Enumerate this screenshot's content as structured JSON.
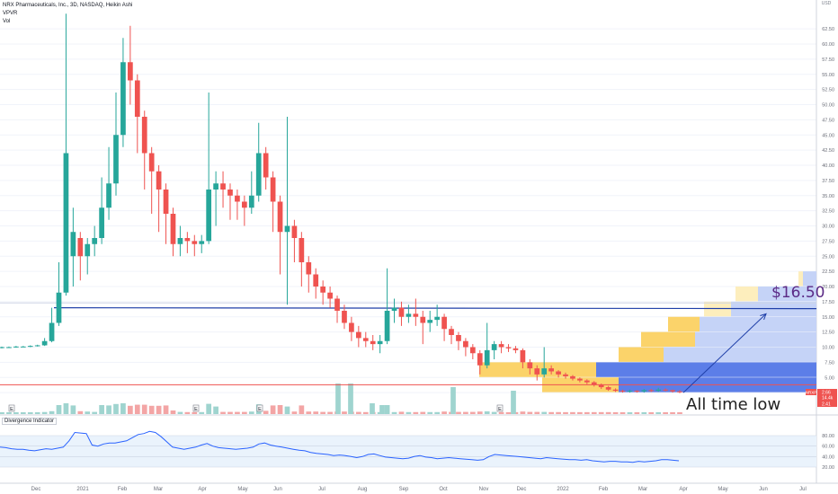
{
  "legend": {
    "title": "NRX Pharmaceuticals, Inc., 3D, NASDAQ, Heikin Ashi",
    "vpvr": "VPVR",
    "vol": "Vol"
  },
  "indicator_label": "Divergence Indicator",
  "annotations": {
    "price_target": "$16.50",
    "all_time_low": "All time low"
  },
  "top_right_label": "USD",
  "colors": {
    "up": "#26a69a",
    "down": "#ef5350",
    "vol_up": "#9fd4cf",
    "vol_down": "#f3a5a5",
    "hline_blue": "#1f3fa8",
    "hline_red": "#ef5350",
    "indicator_line": "#2962ff",
    "vp_blue": "#c5d3f7",
    "vp_blue_dark": "#5c7ee8",
    "vp_yellow": "#fbd36a",
    "vp_yellow_light": "#fdeebd",
    "arrow": "#1f3fa8"
  },
  "chart_data": {
    "type": "candlestick",
    "title": "NRX Pharmaceuticals, Inc., 3D, NASDAQ, Heikin Ashi",
    "y_axis_ticks": [
      "62.50",
      "60.00",
      "57.50",
      "55.00",
      "52.50",
      "50.00",
      "47.50",
      "45.00",
      "42.50",
      "40.00",
      "37.50",
      "35.00",
      "32.50",
      "30.00",
      "27.50",
      "25.00",
      "22.50",
      "20.00",
      "17.50",
      "15.00",
      "12.50",
      "10.00",
      "7.50",
      "5.00",
      "2.50"
    ],
    "x_axis_ticks": [
      "Dec",
      "2021",
      "Feb",
      "Mar",
      "Apr",
      "May",
      "Jun",
      "Jul",
      "Aug",
      "Sep",
      "Oct",
      "Nov",
      "Dec",
      "2022",
      "Feb",
      "Mar",
      "Apr",
      "May",
      "Jun",
      "Jul"
    ],
    "price_labels": [
      {
        "label": "NRXP",
        "value": "2.66"
      },
      {
        "label": "",
        "value": "14.4k"
      },
      {
        "label": "",
        "value": "2.41"
      }
    ],
    "ylim": [
      0,
      64
    ],
    "horizontal_lines": [
      16.5,
      3.8
    ],
    "candles": [
      {
        "d": "Dec",
        "o": 9.9,
        "c": 10.0,
        "h": 10.1,
        "l": 9.8
      },
      {
        "d": "Dec",
        "o": 10.0,
        "c": 10.0,
        "h": 10.1,
        "l": 9.9
      },
      {
        "d": "Dec",
        "o": 10.0,
        "c": 10.1,
        "h": 10.2,
        "l": 9.9
      },
      {
        "d": "Dec",
        "o": 10.1,
        "c": 10.1,
        "h": 10.2,
        "l": 10.0
      },
      {
        "d": "Dec",
        "o": 10.1,
        "c": 10.2,
        "h": 10.3,
        "l": 10.0
      },
      {
        "d": "Dec",
        "o": 10.2,
        "c": 10.3,
        "h": 10.4,
        "l": 10.1
      },
      {
        "d": "Dec",
        "o": 10.3,
        "c": 11.0,
        "h": 11.5,
        "l": 10.2
      },
      {
        "d": "Dec",
        "o": 11.0,
        "c": 14.0,
        "h": 16.5,
        "l": 10.8
      },
      {
        "d": "Dec",
        "o": 14.0,
        "c": 19.0,
        "h": 24.0,
        "l": 13.5
      },
      {
        "d": "Dec",
        "o": 19.0,
        "c": 42.0,
        "h": 65.0,
        "l": 18.5
      },
      {
        "d": "Jan",
        "o": 25.0,
        "c": 29.0,
        "h": 33.0,
        "l": 20.0
      },
      {
        "d": "Jan",
        "o": 28.0,
        "c": 25.0,
        "h": 29.0,
        "l": 21.0
      },
      {
        "d": "Jan",
        "o": 25.0,
        "c": 27.0,
        "h": 28.0,
        "l": 22.0
      },
      {
        "d": "Jan",
        "o": 27.0,
        "c": 28.0,
        "h": 30.0,
        "l": 25.0
      },
      {
        "d": "Jan",
        "o": 28.0,
        "c": 33.0,
        "h": 38.0,
        "l": 27.0
      },
      {
        "d": "Jan",
        "o": 33.0,
        "c": 37.0,
        "h": 43.0,
        "l": 31.0
      },
      {
        "d": "Jan",
        "o": 37.0,
        "c": 45.0,
        "h": 52.0,
        "l": 35.0
      },
      {
        "d": "Feb",
        "o": 45.0,
        "c": 57.0,
        "h": 61.0,
        "l": 43.0
      },
      {
        "d": "Feb",
        "o": 57.0,
        "c": 54.0,
        "h": 63.0,
        "l": 50.0
      },
      {
        "d": "Feb",
        "o": 54.0,
        "c": 48.0,
        "h": 55.0,
        "l": 42.0
      },
      {
        "d": "Feb",
        "o": 48.0,
        "c": 42.0,
        "h": 49.0,
        "l": 36.0
      },
      {
        "d": "Feb",
        "o": 42.0,
        "c": 39.0,
        "h": 43.0,
        "l": 32.0
      },
      {
        "d": "Feb",
        "o": 39.0,
        "c": 36.0,
        "h": 40.0,
        "l": 29.0
      },
      {
        "d": "Mar",
        "o": 36.0,
        "c": 32.0,
        "h": 37.0,
        "l": 27.0
      },
      {
        "d": "Mar",
        "o": 32.0,
        "c": 27.0,
        "h": 33.0,
        "l": 25.0
      },
      {
        "d": "Mar",
        "o": 27.0,
        "c": 28.0,
        "h": 30.0,
        "l": 25.0
      },
      {
        "d": "Mar",
        "o": 28.0,
        "c": 27.5,
        "h": 29.0,
        "l": 25.5
      },
      {
        "d": "Mar",
        "o": 27.5,
        "c": 27.0,
        "h": 28.5,
        "l": 25.0
      },
      {
        "d": "Mar",
        "o": 27.0,
        "c": 27.5,
        "h": 28.5,
        "l": 25.5
      },
      {
        "d": "Mar",
        "o": 27.5,
        "c": 36.0,
        "h": 52.0,
        "l": 27.0
      },
      {
        "d": "Apr",
        "o": 36.0,
        "c": 37.0,
        "h": 39.0,
        "l": 30.0
      },
      {
        "d": "Apr",
        "o": 37.0,
        "c": 36.0,
        "h": 39.0,
        "l": 33.0
      },
      {
        "d": "Apr",
        "o": 36.0,
        "c": 35.0,
        "h": 37.0,
        "l": 31.0
      },
      {
        "d": "Apr",
        "o": 35.0,
        "c": 34.0,
        "h": 36.0,
        "l": 31.0
      },
      {
        "d": "Apr",
        "o": 34.0,
        "c": 33.0,
        "h": 35.0,
        "l": 30.0
      },
      {
        "d": "Apr",
        "o": 33.0,
        "c": 35.0,
        "h": 39.0,
        "l": 32.0
      },
      {
        "d": "May",
        "o": 35.0,
        "c": 42.0,
        "h": 47.0,
        "l": 34.0
      },
      {
        "d": "May",
        "o": 42.0,
        "c": 38.0,
        "h": 43.0,
        "l": 36.0
      },
      {
        "d": "May",
        "o": 38.0,
        "c": 34.0,
        "h": 39.0,
        "l": 29.0
      },
      {
        "d": "May",
        "o": 34.0,
        "c": 29.0,
        "h": 35.0,
        "l": 22.0
      },
      {
        "d": "May",
        "o": 29.0,
        "c": 30.0,
        "h": 48.0,
        "l": 17.0
      },
      {
        "d": "Jun",
        "o": 30.0,
        "c": 28.0,
        "h": 31.0,
        "l": 24.0
      },
      {
        "d": "Jun",
        "o": 28.0,
        "c": 24.0,
        "h": 29.0,
        "l": 20.0
      },
      {
        "d": "Jun",
        "o": 24.0,
        "c": 22.0,
        "h": 25.0,
        "l": 19.0
      },
      {
        "d": "Jun",
        "o": 22.0,
        "c": 20.0,
        "h": 23.0,
        "l": 18.0
      },
      {
        "d": "Jun",
        "o": 20.0,
        "c": 19.0,
        "h": 21.0,
        "l": 17.0
      },
      {
        "d": "Jun",
        "o": 19.0,
        "c": 18.0,
        "h": 20.0,
        "l": 16.5
      },
      {
        "d": "Jul",
        "o": 18.0,
        "c": 16.0,
        "h": 18.5,
        "l": 14.0
      },
      {
        "d": "Jul",
        "o": 16.0,
        "c": 14.0,
        "h": 17.0,
        "l": 13.0
      },
      {
        "d": "Jul",
        "o": 14.0,
        "c": 12.5,
        "h": 15.0,
        "l": 11.0
      },
      {
        "d": "Jul",
        "o": 12.5,
        "c": 11.5,
        "h": 13.5,
        "l": 10.0
      },
      {
        "d": "Jul",
        "o": 11.5,
        "c": 11.0,
        "h": 12.5,
        "l": 10.0
      },
      {
        "d": "Jul",
        "o": 11.0,
        "c": 10.5,
        "h": 12.0,
        "l": 9.5
      },
      {
        "d": "Jul",
        "o": 10.5,
        "c": 11.0,
        "h": 12.0,
        "l": 9.0
      },
      {
        "d": "Jul",
        "o": 11.0,
        "c": 16.0,
        "h": 23.0,
        "l": 10.5
      },
      {
        "d": "Aug",
        "o": 16.0,
        "c": 16.5,
        "h": 18.0,
        "l": 14.0
      },
      {
        "d": "Aug",
        "o": 16.5,
        "c": 15.0,
        "h": 17.5,
        "l": 13.5
      },
      {
        "d": "Aug",
        "o": 15.0,
        "c": 15.5,
        "h": 17.0,
        "l": 14.0
      },
      {
        "d": "Aug",
        "o": 15.5,
        "c": 15.0,
        "h": 18.0,
        "l": 13.5
      },
      {
        "d": "Aug",
        "o": 15.0,
        "c": 14.0,
        "h": 16.0,
        "l": 10.5
      },
      {
        "d": "Aug",
        "o": 14.0,
        "c": 14.5,
        "h": 16.0,
        "l": 12.5
      },
      {
        "d": "Aug",
        "o": 14.5,
        "c": 15.0,
        "h": 17.0,
        "l": 13.5
      },
      {
        "d": "Sep",
        "o": 15.0,
        "c": 13.0,
        "h": 15.5,
        "l": 11.0
      },
      {
        "d": "Sep",
        "o": 13.0,
        "c": 12.0,
        "h": 13.5,
        "l": 10.5
      },
      {
        "d": "Sep",
        "o": 12.0,
        "c": 11.0,
        "h": 12.5,
        "l": 9.5
      },
      {
        "d": "Sep",
        "o": 11.0,
        "c": 10.0,
        "h": 11.5,
        "l": 8.5
      },
      {
        "d": "Sep",
        "o": 10.0,
        "c": 9.0,
        "h": 10.5,
        "l": 8.0
      },
      {
        "d": "Oct",
        "o": 9.0,
        "c": 7.0,
        "h": 9.5,
        "l": 5.5
      },
      {
        "d": "Oct",
        "o": 7.0,
        "c": 9.5,
        "h": 14.0,
        "l": 6.5
      },
      {
        "d": "Oct",
        "o": 9.5,
        "c": 10.5,
        "h": 11.0,
        "l": 8.0
      },
      {
        "d": "Oct",
        "o": 10.5,
        "c": 10.0,
        "h": 11.0,
        "l": 9.0
      },
      {
        "d": "Oct",
        "o": 10.0,
        "c": 9.8,
        "h": 10.5,
        "l": 9.2
      },
      {
        "d": "Oct",
        "o": 9.8,
        "c": 9.5,
        "h": 10.2,
        "l": 9.0
      },
      {
        "d": "Nov",
        "o": 9.5,
        "c": 7.5,
        "h": 9.8,
        "l": 6.5
      },
      {
        "d": "Nov",
        "o": 7.5,
        "c": 6.5,
        "h": 8.0,
        "l": 5.5
      },
      {
        "d": "Nov",
        "o": 6.5,
        "c": 5.5,
        "h": 7.0,
        "l": 4.5
      },
      {
        "d": "Nov",
        "o": 5.5,
        "c": 6.5,
        "h": 10.0,
        "l": 5.0
      },
      {
        "d": "Dec",
        "o": 6.5,
        "c": 6.0,
        "h": 7.0,
        "l": 5.5
      },
      {
        "d": "Dec",
        "o": 6.0,
        "c": 5.5,
        "h": 6.2,
        "l": 5.0
      },
      {
        "d": "Dec",
        "o": 5.5,
        "c": 5.2,
        "h": 5.8,
        "l": 4.8
      },
      {
        "d": "Dec",
        "o": 5.2,
        "c": 4.8,
        "h": 5.4,
        "l": 4.5
      },
      {
        "d": "Dec",
        "o": 4.8,
        "c": 4.5,
        "h": 5.0,
        "l": 4.2
      },
      {
        "d": "2022",
        "o": 4.5,
        "c": 4.2,
        "h": 4.7,
        "l": 3.9
      },
      {
        "d": "2022",
        "o": 4.2,
        "c": 3.8,
        "h": 4.4,
        "l": 3.5
      },
      {
        "d": "2022",
        "o": 3.8,
        "c": 3.4,
        "h": 4.0,
        "l": 3.1
      },
      {
        "d": "2022",
        "o": 3.4,
        "c": 3.0,
        "h": 3.6,
        "l": 2.8
      },
      {
        "d": "Feb",
        "o": 3.0,
        "c": 2.8,
        "h": 3.2,
        "l": 2.6
      },
      {
        "d": "Feb",
        "o": 2.8,
        "c": 2.7,
        "h": 3.0,
        "l": 2.5
      },
      {
        "d": "Feb",
        "o": 2.7,
        "c": 2.8,
        "h": 3.0,
        "l": 2.5
      },
      {
        "d": "Feb",
        "o": 2.8,
        "c": 2.7,
        "h": 2.9,
        "l": 2.5
      },
      {
        "d": "Mar",
        "o": 2.7,
        "c": 2.9,
        "h": 3.1,
        "l": 2.5
      },
      {
        "d": "Mar",
        "o": 2.9,
        "c": 2.8,
        "h": 3.1,
        "l": 2.6
      },
      {
        "d": "Mar",
        "o": 2.8,
        "c": 3.0,
        "h": 3.3,
        "l": 2.6
      },
      {
        "d": "Mar",
        "o": 3.0,
        "c": 2.9,
        "h": 3.2,
        "l": 2.7
      },
      {
        "d": "Mar",
        "o": 2.9,
        "c": 2.7,
        "h": 3.0,
        "l": 2.5
      },
      {
        "d": "Mar",
        "o": 2.7,
        "c": 2.66,
        "h": 2.9,
        "l": 2.41
      }
    ],
    "volume_spikes": {
      "Jul": 25,
      "Aug": 8,
      "Oct": 22,
      "Nov": 20,
      "Dec": 5
    },
    "event_markers": [
      {
        "label": "E",
        "month": "Dec"
      },
      {
        "label": "E",
        "month": "Mar"
      },
      {
        "label": "E",
        "month": "May"
      },
      {
        "label": "E",
        "month": "Nov"
      }
    ],
    "volume_profile": [
      {
        "price": 20.0,
        "up": 15,
        "down": 5
      },
      {
        "price": 17.5,
        "up": 65,
        "down": 25
      },
      {
        "price": 15.0,
        "up": 95,
        "down": 30
      },
      {
        "price": 12.5,
        "up": 130,
        "down": 35
      },
      {
        "price": 10.0,
        "up": 135,
        "down": 60
      },
      {
        "price": 7.5,
        "up": 170,
        "down": 50
      },
      {
        "price": 5.0,
        "up": 245,
        "down": 130
      },
      {
        "price": 2.5,
        "up": 220,
        "down": 85
      }
    ],
    "indicator": {
      "name": "Divergence Indicator",
      "y_ticks": [
        "80.00",
        "60.00",
        "40.00",
        "20.00"
      ],
      "ylim": [
        20,
        92
      ],
      "values": [
        58,
        57,
        55,
        54,
        54,
        52,
        51,
        53,
        55,
        54,
        56,
        58,
        70,
        86,
        85,
        84,
        62,
        60,
        64,
        66,
        66,
        68,
        70,
        76,
        82,
        84,
        88,
        86,
        78,
        68,
        58,
        56,
        54,
        56,
        58,
        62,
        65,
        60,
        57,
        56,
        55,
        54,
        55,
        56,
        58,
        64,
        66,
        62,
        60,
        58,
        56,
        54,
        52,
        51,
        48,
        46,
        45,
        44,
        42,
        43,
        42,
        40,
        38,
        40,
        44,
        45,
        42,
        39,
        38,
        37,
        36,
        37,
        40,
        42,
        39,
        38,
        36,
        37,
        38,
        37,
        36,
        35,
        34,
        33,
        34,
        40,
        44,
        43,
        42,
        41,
        40,
        39,
        38,
        37,
        36,
        38,
        37,
        36,
        35,
        34,
        34,
        33,
        34,
        32,
        31,
        30,
        31,
        31,
        30,
        30,
        29,
        31,
        30,
        31,
        32,
        34,
        34,
        33,
        32
      ]
    },
    "annotations": [
      {
        "text": "$16.50",
        "price": 16.5
      },
      {
        "text": "All time low",
        "price": 2.41
      }
    ]
  }
}
